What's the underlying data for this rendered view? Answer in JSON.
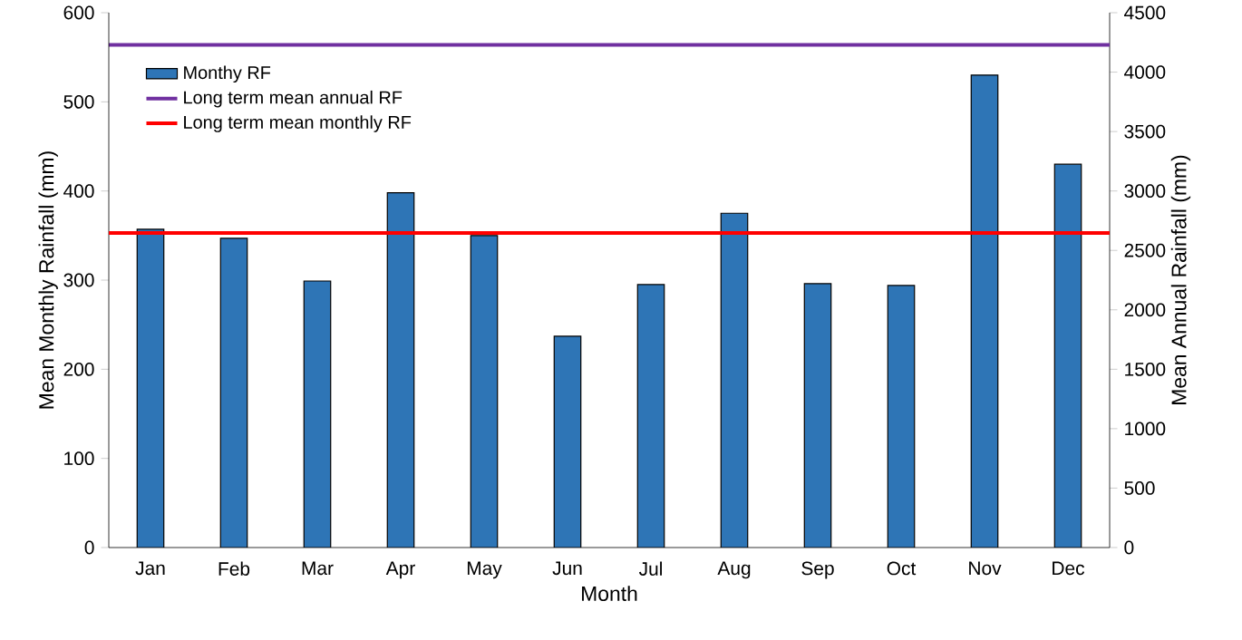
{
  "chart_data": {
    "type": "bar",
    "xlabel": "Month",
    "ylabel": "Mean Monthly Rainfall (mm)",
    "y2label": "Mean Annual Rainfall (mm)",
    "categories": [
      "Jan",
      "Feb",
      "Mar",
      "Apr",
      "May",
      "Jun",
      "Jul",
      "Aug",
      "Sep",
      "Oct",
      "Nov",
      "Dec"
    ],
    "series": [
      {
        "name": "Monthy RF",
        "color": "#2e75b6",
        "values": [
          357,
          347,
          299,
          398,
          350,
          237,
          295,
          375,
          296,
          294,
          530,
          430
        ]
      }
    ],
    "ylim": [
      0,
      600
    ],
    "yticks": [
      0,
      100,
      200,
      300,
      400,
      500,
      600
    ],
    "y2lim": [
      0,
      4500
    ],
    "y2ticks": [
      0,
      500,
      1000,
      1500,
      2000,
      2500,
      3000,
      3500,
      4000,
      4500
    ],
    "ref_lines": [
      {
        "axis": "y2",
        "value": 4230,
        "label": "Long term mean annual RF",
        "color": "#7030a0"
      },
      {
        "axis": "y",
        "value": 353,
        "label": "Long term mean monthly RF",
        "color": "#ff0000"
      }
    ],
    "grid": false,
    "legend": "top left"
  }
}
